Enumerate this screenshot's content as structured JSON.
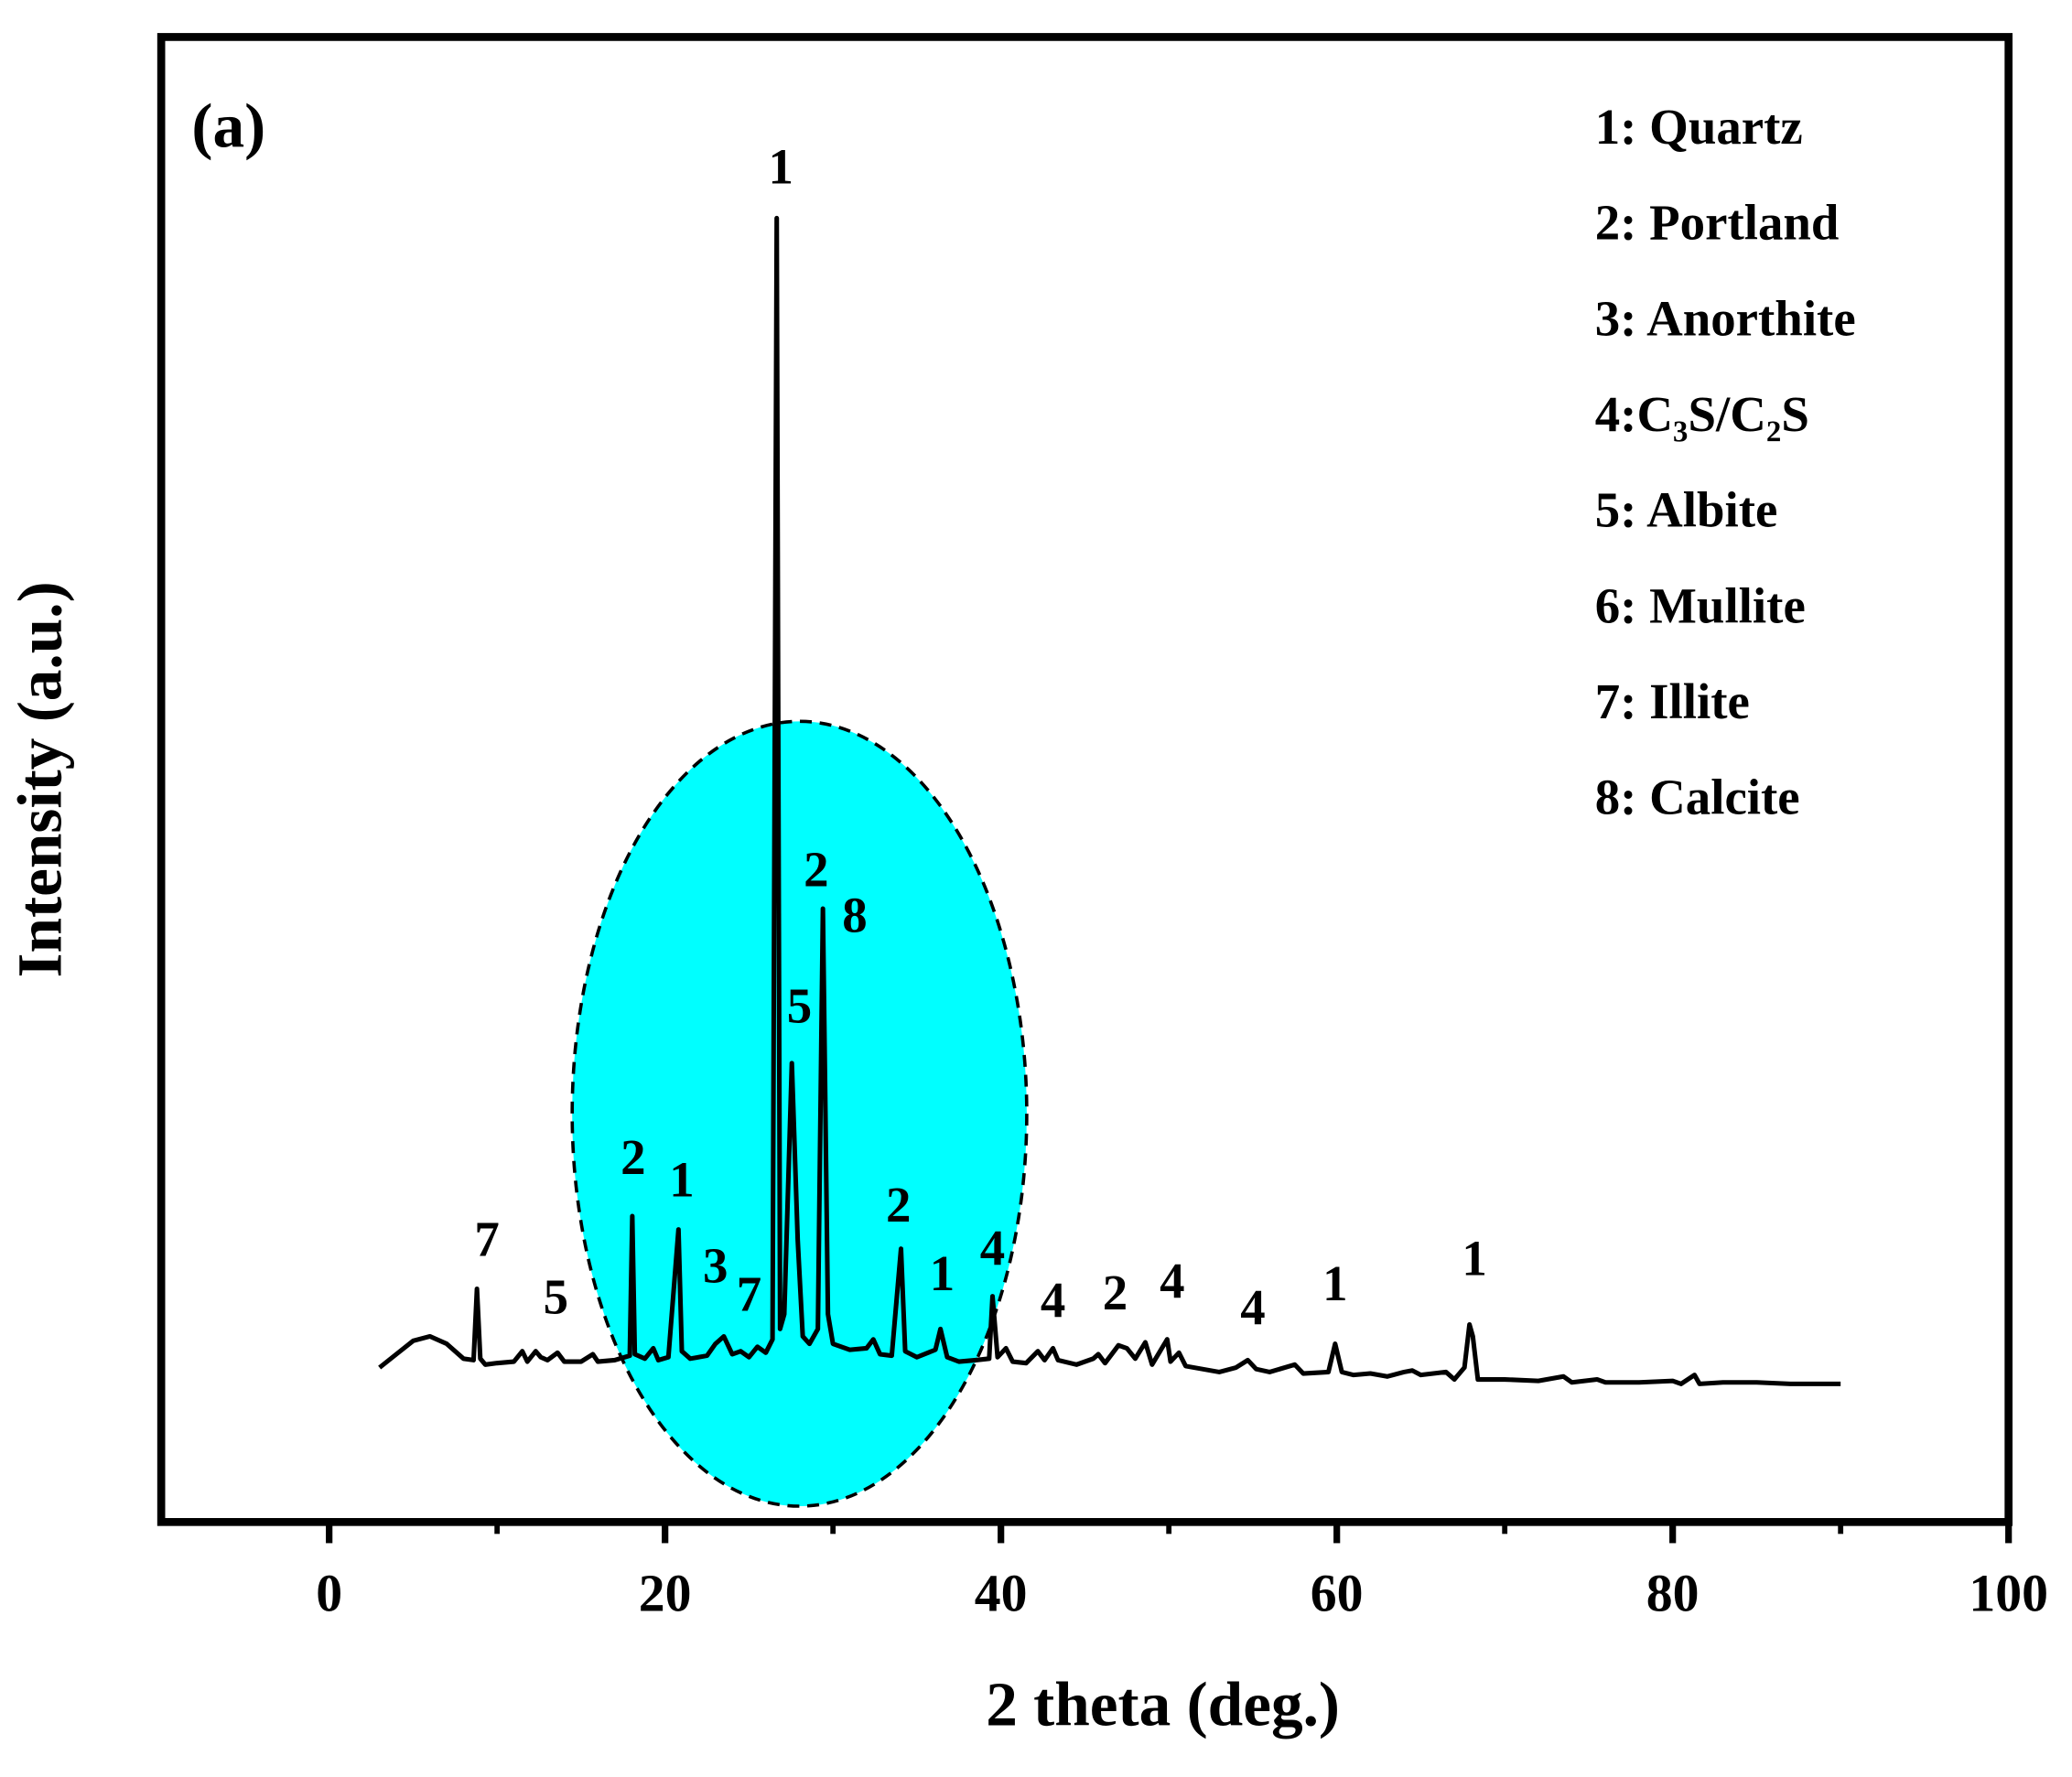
{
  "chart_data": {
    "type": "line",
    "panel_label": "(a)",
    "xlabel": "2 theta (deg.)",
    "ylabel": "Intensity (a.u.)",
    "xlim": [
      -10,
      100
    ],
    "xticks": [
      0,
      20,
      40,
      60,
      80,
      100
    ],
    "xticks_minor": [
      10,
      30,
      50,
      70,
      90
    ],
    "ylim": [
      0,
      100
    ],
    "x": [
      3,
      4,
      5,
      6,
      7,
      8,
      8.6,
      8.8,
      9.0,
      9.3,
      10,
      11,
      11.5,
      11.8,
      12.3,
      12.6,
      13,
      13.6,
      14,
      15,
      15.7,
      16,
      17,
      17.9,
      18.05,
      18.2,
      18.8,
      19.3,
      19.6,
      20.2,
      20.8,
      21.0,
      21.5,
      22.5,
      23.0,
      23.5,
      24,
      24.5,
      25,
      25.5,
      26,
      26.4,
      26.65,
      26.85,
      27.1,
      27.55,
      27.9,
      28.2,
      28.6,
      29.1,
      29.4,
      29.7,
      30,
      31,
      32,
      32.4,
      32.8,
      33.5,
      34.05,
      34.3,
      35,
      36.1,
      36.4,
      36.8,
      37.5,
      38.5,
      39.3,
      39.5,
      39.8,
      40.3,
      40.7,
      41.5,
      42.2,
      42.6,
      43.1,
      43.4,
      44.5,
      45.5,
      45.8,
      46.2,
      47,
      47.5,
      48,
      48.6,
      49,
      49.9,
      50.1,
      50.6,
      51,
      52,
      53,
      54,
      54.7,
      55.2,
      56,
      57.5,
      58,
      59.5,
      59.9,
      60.3,
      61,
      62,
      63,
      64,
      64.5,
      65,
      66.5,
      67,
      67.6,
      67.9,
      68.1,
      68.4,
      70,
      72,
      73.5,
      74,
      75.5,
      76,
      78,
      80,
      80.5,
      81.3,
      81.6,
      83,
      85,
      87,
      90
    ],
    "series": [
      {
        "color": "#000000",
        "values": [
          10.4,
          11.3,
          12.2,
          12.5,
          12.0,
          11.0,
          10.9,
          15.7,
          11.0,
          10.6,
          10.7,
          10.8,
          11.5,
          10.8,
          11.5,
          11.1,
          10.9,
          11.4,
          10.8,
          10.8,
          11.3,
          10.8,
          10.9,
          11.2,
          20.6,
          11.3,
          11.0,
          11.7,
          10.9,
          11.1,
          19.7,
          11.5,
          11.0,
          11.2,
          12.0,
          12.5,
          11.3,
          11.5,
          11.1,
          11.8,
          11.4,
          12.3,
          87.8,
          13,
          14,
          30.9,
          19,
          12.5,
          12.0,
          13,
          41.3,
          14,
          12.0,
          11.6,
          11.7,
          12.3,
          11.3,
          11.2,
          18.4,
          11.5,
          11.1,
          11.6,
          13.0,
          11.1,
          10.8,
          10.9,
          11.0,
          15.2,
          11.1,
          11.7,
          10.8,
          10.7,
          11.5,
          10.9,
          11.7,
          10.9,
          10.6,
          11.0,
          11.3,
          10.7,
          11.9,
          11.7,
          11.0,
          12.1,
          10.6,
          12.3,
          10.8,
          11.4,
          10.5,
          10.3,
          10.1,
          10.4,
          10.9,
          10.3,
          10.1,
          10.6,
          10.0,
          10.1,
          12.0,
          10.1,
          9.9,
          10.0,
          9.8,
          10.1,
          10.2,
          9.9,
          10.1,
          9.6,
          10.4,
          13.3,
          12.5,
          9.6,
          9.6,
          9.5,
          9.8,
          9.4,
          9.6,
          9.4,
          9.4,
          9.5,
          9.3,
          9.9,
          9.3,
          9.4,
          9.4,
          9.3,
          9.3
        ]
      }
    ],
    "annotations": [
      {
        "text": "1",
        "x": 26.9,
        "y": 90.9
      },
      {
        "text": "2",
        "x": 29.0,
        "y": 43.6
      },
      {
        "text": "8",
        "x": 31.3,
        "y": 40.5
      },
      {
        "text": "5",
        "x": 28.0,
        "y": 34.4
      },
      {
        "text": "2",
        "x": 18.1,
        "y": 24.2
      },
      {
        "text": "1",
        "x": 21.0,
        "y": 22.7
      },
      {
        "text": "3",
        "x": 23.0,
        "y": 16.9
      },
      {
        "text": "7",
        "x": 25.0,
        "y": 15.0
      },
      {
        "text": "2",
        "x": 33.9,
        "y": 21.0
      },
      {
        "text": "1",
        "x": 36.5,
        "y": 16.4
      },
      {
        "text": "4",
        "x": 39.5,
        "y": 18.1
      },
      {
        "text": "4",
        "x": 43.1,
        "y": 14.6
      },
      {
        "text": "2",
        "x": 46.8,
        "y": 15.1
      },
      {
        "text": "4",
        "x": 50.2,
        "y": 15.9
      },
      {
        "text": "4",
        "x": 55.0,
        "y": 14.1
      },
      {
        "text": "1",
        "x": 59.9,
        "y": 15.7
      },
      {
        "text": "1",
        "x": 68.2,
        "y": 17.4
      },
      {
        "text": "7",
        "x": 9.4,
        "y": 18.7
      },
      {
        "text": "5",
        "x": 13.5,
        "y": 14.8
      }
    ],
    "phase_key": [
      "1: Quartz",
      "2: Portland",
      "3: Anorthite",
      "4:C₃S/C₂S",
      "5: Albite",
      "6: Mullite",
      "7: Illite",
      "8: Calcite"
    ]
  }
}
